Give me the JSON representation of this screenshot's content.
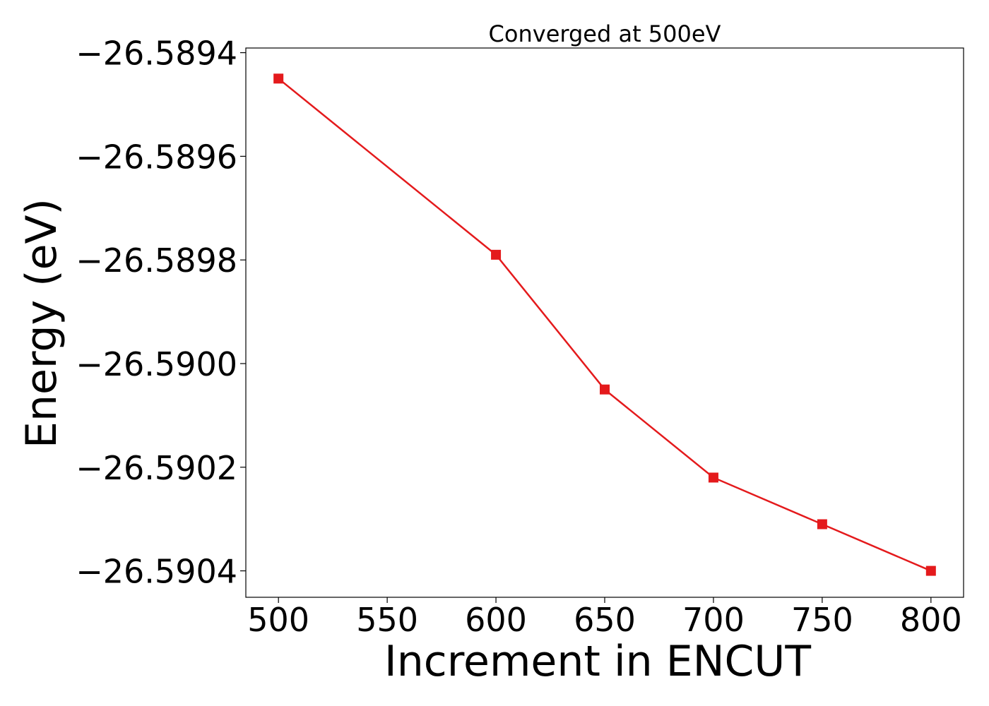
{
  "chart_data": {
    "type": "line",
    "title": "Converged at 500eV",
    "xlabel": "Increment in ENCUT",
    "ylabel": "Energy (eV)",
    "x": [
      500,
      600,
      650,
      700,
      750,
      800
    ],
    "series": [
      {
        "values": [
          -26.58945,
          -26.58979,
          -26.59005,
          -26.59022,
          -26.59031,
          -26.5904
        ],
        "color": "#e41a1c",
        "marker": "square"
      }
    ],
    "xlim": [
      485,
      815
    ],
    "ylim": [
      -26.590451,
      -26.589391
    ],
    "xticks": [
      500,
      550,
      600,
      650,
      700,
      750,
      800
    ],
    "xtick_labels": [
      "500",
      "550",
      "600",
      "650",
      "700",
      "750",
      "800"
    ],
    "yticks": [
      -26.5894,
      -26.5896,
      -26.5898,
      -26.59,
      -26.5902,
      -26.5904
    ],
    "ytick_labels": [
      "−26.5894",
      "−26.5896",
      "−26.5898",
      "−26.5900",
      "−26.5902",
      "−26.5904"
    ],
    "grid": false,
    "legend": "none"
  }
}
